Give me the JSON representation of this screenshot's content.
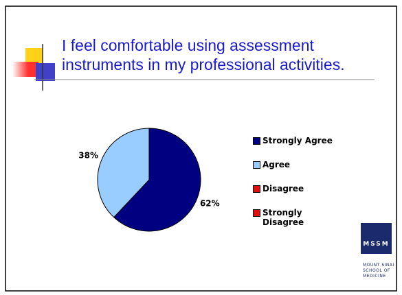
{
  "chart_data": {
    "type": "pie",
    "title": "I feel comfortable using assessment instruments in my professional activities.",
    "categories": [
      "Strongly Agree",
      "Agree",
      "Disagree",
      "Strongly Disagree"
    ],
    "values": [
      62,
      38,
      0,
      0
    ],
    "value_labels": [
      "62%",
      "38%",
      null,
      null
    ],
    "colors": [
      "#000080",
      "#99ccff",
      "#e01010",
      "#e01010"
    ],
    "legend": "right"
  },
  "logo": {
    "monogram": "MSSM",
    "lines": [
      "MOUNT SINAI",
      "SCHOOL OF",
      "MEDICINE"
    ]
  }
}
